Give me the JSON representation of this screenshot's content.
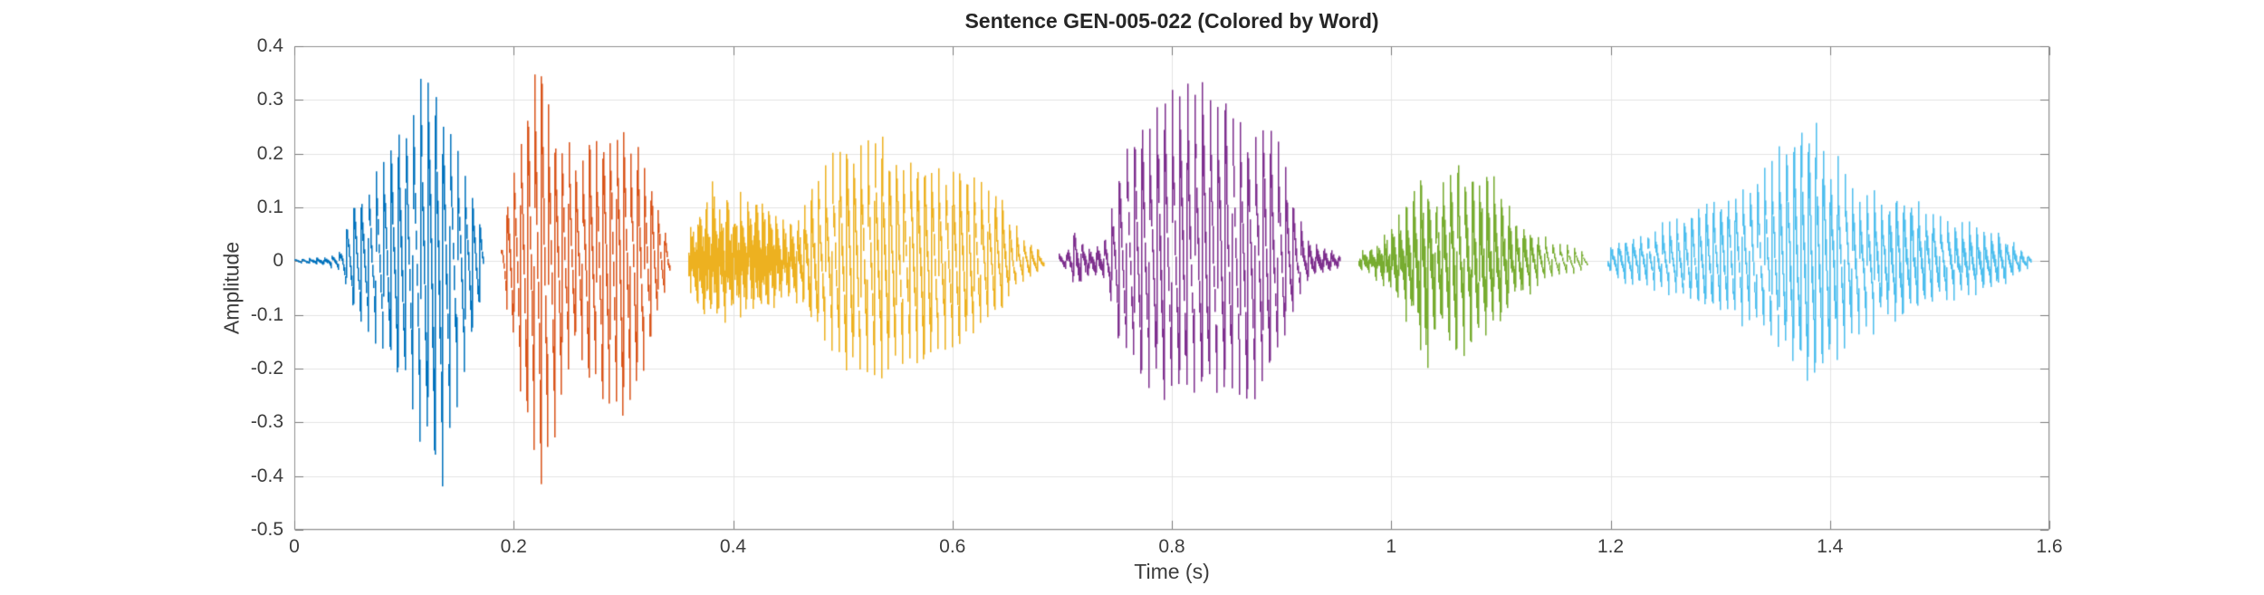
{
  "figure": {
    "title": "Sentence GEN-005-022 (Colored by Word)",
    "xlabel": "Time (s)",
    "ylabel": "Amplitude"
  },
  "axes": {
    "xlim": [
      0,
      1.6
    ],
    "ylim": [
      -0.5,
      0.4
    ],
    "xticks": [
      0,
      0.2,
      0.4,
      0.6,
      0.8,
      1,
      1.2,
      1.4,
      1.6
    ],
    "xtick_labels": [
      "0",
      "0.2",
      "0.4",
      "0.6",
      "0.8",
      "1",
      "1.2",
      "1.4",
      "1.6"
    ],
    "yticks": [
      0.4,
      0.3,
      0.2,
      0.1,
      0,
      -0.1,
      -0.2,
      -0.3,
      -0.4,
      -0.5
    ],
    "ytick_labels": [
      "0.4",
      "0.3",
      "0.2",
      "0.1",
      "0",
      "-0.1",
      "-0.2",
      "-0.3",
      "-0.4",
      "-0.5"
    ],
    "grid": true,
    "box": true,
    "colors": {
      "background": "#ffffff",
      "grid": "#e3e3e3",
      "box": "#8f8f8f",
      "tick": "#7a7a7a",
      "tick_text": "#3d3d3d",
      "title_text": "#262626"
    }
  },
  "chart_data": {
    "type": "line",
    "subtype": "audio-waveform-colored-by-word",
    "title": "Sentence GEN-005-022 (Colored by Word)",
    "xlabel": "Time (s)",
    "ylabel": "Amplitude",
    "xlim": [
      0,
      1.6
    ],
    "ylim": [
      -0.5,
      0.4
    ],
    "grid": true,
    "legend": "none",
    "segments": [
      {
        "word_index": 1,
        "color": "#0072BD",
        "t_start": 0.0,
        "t_end": 0.172,
        "f0_hz": 148,
        "peak_amp": 0.35,
        "min_amp": -0.42,
        "envelope": [
          [
            0.0,
            0.005,
            0.005,
            0.3
          ],
          [
            0.028,
            0.008,
            0.008,
            0.5
          ],
          [
            0.042,
            0.02,
            0.02,
            0.2
          ],
          [
            0.05,
            0.1,
            0.08,
            0.05
          ],
          [
            0.06,
            0.12,
            0.11,
            0.05
          ],
          [
            0.07,
            0.15,
            0.14,
            0.05
          ],
          [
            0.08,
            0.19,
            0.16,
            0.05
          ],
          [
            0.09,
            0.22,
            0.19,
            0.05
          ],
          [
            0.1,
            0.27,
            0.24,
            0.05
          ],
          [
            0.11,
            0.33,
            0.29,
            0.05
          ],
          [
            0.118,
            0.35,
            0.34,
            0.05
          ],
          [
            0.126,
            0.31,
            0.4,
            0.05
          ],
          [
            0.133,
            0.28,
            0.42,
            0.05
          ],
          [
            0.141,
            0.25,
            0.33,
            0.05
          ],
          [
            0.15,
            0.2,
            0.26,
            0.05
          ],
          [
            0.158,
            0.14,
            0.18,
            0.05
          ],
          [
            0.165,
            0.11,
            0.12,
            0.05
          ],
          [
            0.172,
            0.05,
            0.05,
            0.1
          ]
        ]
      },
      {
        "word_index": 2,
        "color": "#D95319",
        "t_start": 0.188,
        "t_end": 0.342,
        "f0_hz": 160,
        "peak_amp": 0.385,
        "min_amp": -0.42,
        "envelope": [
          [
            0.188,
            0.03,
            0.03,
            0.1
          ],
          [
            0.196,
            0.14,
            0.12,
            0.05
          ],
          [
            0.204,
            0.2,
            0.22,
            0.05
          ],
          [
            0.212,
            0.27,
            0.3,
            0.05
          ],
          [
            0.22,
            0.385,
            0.38,
            0.05
          ],
          [
            0.227,
            0.36,
            0.42,
            0.05
          ],
          [
            0.234,
            0.3,
            0.36,
            0.05
          ],
          [
            0.241,
            0.2,
            0.28,
            0.05
          ],
          [
            0.249,
            0.24,
            0.2,
            0.05
          ],
          [
            0.257,
            0.17,
            0.15,
            0.05
          ],
          [
            0.264,
            0.21,
            0.2,
            0.05
          ],
          [
            0.272,
            0.23,
            0.24,
            0.05
          ],
          [
            0.281,
            0.245,
            0.27,
            0.05
          ],
          [
            0.29,
            0.26,
            0.3,
            0.05
          ],
          [
            0.299,
            0.25,
            0.29,
            0.05
          ],
          [
            0.308,
            0.23,
            0.26,
            0.05
          ],
          [
            0.317,
            0.2,
            0.22,
            0.05
          ],
          [
            0.326,
            0.15,
            0.15,
            0.05
          ],
          [
            0.335,
            0.09,
            0.08,
            0.1
          ],
          [
            0.342,
            0.03,
            0.03,
            0.1
          ]
        ]
      },
      {
        "word_index": 3,
        "color": "#EDB120",
        "t_start": 0.359,
        "t_end": 0.683,
        "f0_hz": 155,
        "peak_amp": 0.23,
        "min_amp": -0.22,
        "envelope": [
          [
            0.359,
            0.06,
            0.05,
            0.6
          ],
          [
            0.368,
            0.11,
            0.1,
            0.6
          ],
          [
            0.378,
            0.135,
            0.12,
            0.6
          ],
          [
            0.39,
            0.14,
            0.125,
            0.6
          ],
          [
            0.402,
            0.125,
            0.115,
            0.6
          ],
          [
            0.414,
            0.13,
            0.12,
            0.6
          ],
          [
            0.426,
            0.125,
            0.115,
            0.6
          ],
          [
            0.438,
            0.11,
            0.1,
            0.55
          ],
          [
            0.45,
            0.09,
            0.085,
            0.5
          ],
          [
            0.46,
            0.1,
            0.09,
            0.35
          ],
          [
            0.47,
            0.14,
            0.12,
            0.2
          ],
          [
            0.48,
            0.17,
            0.15,
            0.1
          ],
          [
            0.492,
            0.2,
            0.18,
            0.08
          ],
          [
            0.504,
            0.215,
            0.21,
            0.08
          ],
          [
            0.516,
            0.225,
            0.215,
            0.08
          ],
          [
            0.528,
            0.23,
            0.22,
            0.08
          ],
          [
            0.54,
            0.225,
            0.21,
            0.08
          ],
          [
            0.552,
            0.21,
            0.2,
            0.08
          ],
          [
            0.564,
            0.195,
            0.19,
            0.08
          ],
          [
            0.576,
            0.185,
            0.185,
            0.08
          ],
          [
            0.588,
            0.18,
            0.18,
            0.08
          ],
          [
            0.6,
            0.175,
            0.17,
            0.08
          ],
          [
            0.612,
            0.17,
            0.16,
            0.08
          ],
          [
            0.624,
            0.155,
            0.14,
            0.08
          ],
          [
            0.636,
            0.13,
            0.11,
            0.08
          ],
          [
            0.648,
            0.1,
            0.08,
            0.1
          ],
          [
            0.66,
            0.06,
            0.05,
            0.15
          ],
          [
            0.672,
            0.035,
            0.03,
            0.2
          ],
          [
            0.683,
            0.012,
            0.012,
            0.3
          ]
        ]
      },
      {
        "word_index": 4,
        "color": "#7E2F8E",
        "t_start": 0.697,
        "t_end": 0.953,
        "f0_hz": 145,
        "peak_amp": 0.36,
        "min_amp": -0.27,
        "envelope": [
          [
            0.697,
            0.015,
            0.015,
            0.3
          ],
          [
            0.705,
            0.025,
            0.02,
            0.4
          ],
          [
            0.711,
            0.065,
            0.05,
            0.3
          ],
          [
            0.717,
            0.05,
            0.065,
            0.3
          ],
          [
            0.723,
            0.025,
            0.03,
            0.4
          ],
          [
            0.731,
            0.03,
            0.035,
            0.4
          ],
          [
            0.739,
            0.05,
            0.05,
            0.3
          ],
          [
            0.747,
            0.13,
            0.11,
            0.08
          ],
          [
            0.755,
            0.19,
            0.17,
            0.06
          ],
          [
            0.763,
            0.24,
            0.21,
            0.06
          ],
          [
            0.772,
            0.27,
            0.235,
            0.06
          ],
          [
            0.782,
            0.295,
            0.25,
            0.06
          ],
          [
            0.792,
            0.31,
            0.26,
            0.06
          ],
          [
            0.802,
            0.325,
            0.265,
            0.06
          ],
          [
            0.812,
            0.34,
            0.27,
            0.06
          ],
          [
            0.822,
            0.36,
            0.265,
            0.06
          ],
          [
            0.832,
            0.35,
            0.26,
            0.06
          ],
          [
            0.842,
            0.33,
            0.255,
            0.06
          ],
          [
            0.852,
            0.3,
            0.25,
            0.06
          ],
          [
            0.86,
            0.26,
            0.245,
            0.06
          ],
          [
            0.868,
            0.22,
            0.26,
            0.06
          ],
          [
            0.875,
            0.245,
            0.27,
            0.06
          ],
          [
            0.882,
            0.26,
            0.245,
            0.06
          ],
          [
            0.89,
            0.255,
            0.22,
            0.06
          ],
          [
            0.898,
            0.22,
            0.18,
            0.06
          ],
          [
            0.906,
            0.16,
            0.13,
            0.08
          ],
          [
            0.914,
            0.1,
            0.08,
            0.12
          ],
          [
            0.922,
            0.055,
            0.05,
            0.25
          ],
          [
            0.93,
            0.035,
            0.035,
            0.4
          ],
          [
            0.94,
            0.03,
            0.03,
            0.4
          ],
          [
            0.953,
            0.015,
            0.015,
            0.4
          ]
        ]
      },
      {
        "word_index": 5,
        "color": "#77AC30",
        "t_start": 0.97,
        "t_end": 1.178,
        "f0_hz": 150,
        "peak_amp": 0.245,
        "min_amp": -0.22,
        "envelope": [
          [
            0.97,
            0.015,
            0.015,
            0.5
          ],
          [
            0.98,
            0.025,
            0.025,
            0.55
          ],
          [
            0.99,
            0.04,
            0.045,
            0.55
          ],
          [
            1.0,
            0.07,
            0.075,
            0.5
          ],
          [
            1.008,
            0.1,
            0.1,
            0.45
          ],
          [
            1.016,
            0.12,
            0.13,
            0.4
          ],
          [
            1.024,
            0.18,
            0.17,
            0.3
          ],
          [
            1.03,
            0.175,
            0.21,
            0.3
          ],
          [
            1.036,
            0.14,
            0.19,
            0.35
          ],
          [
            1.042,
            0.12,
            0.14,
            0.4
          ],
          [
            1.048,
            0.16,
            0.17,
            0.3
          ],
          [
            1.054,
            0.22,
            0.2,
            0.25
          ],
          [
            1.06,
            0.245,
            0.22,
            0.25
          ],
          [
            1.066,
            0.22,
            0.215,
            0.25
          ],
          [
            1.072,
            0.2,
            0.19,
            0.3
          ],
          [
            1.078,
            0.185,
            0.17,
            0.3
          ],
          [
            1.084,
            0.2,
            0.155,
            0.3
          ],
          [
            1.09,
            0.17,
            0.14,
            0.3
          ],
          [
            1.098,
            0.145,
            0.12,
            0.3
          ],
          [
            1.106,
            0.12,
            0.1,
            0.3
          ],
          [
            1.114,
            0.1,
            0.085,
            0.3
          ],
          [
            1.122,
            0.08,
            0.07,
            0.25
          ],
          [
            1.13,
            0.06,
            0.055,
            0.2
          ],
          [
            1.14,
            0.045,
            0.04,
            0.15
          ],
          [
            1.15,
            0.035,
            0.03,
            0.1
          ],
          [
            1.16,
            0.03,
            0.025,
            0.08
          ],
          [
            1.17,
            0.025,
            0.02,
            0.08
          ],
          [
            1.178,
            0.012,
            0.012,
            0.1
          ]
        ]
      },
      {
        "word_index": 6,
        "color": "#4DBEEE",
        "t_start": 1.197,
        "t_end": 1.583,
        "f0_hz": 150,
        "peak_amp": 0.26,
        "min_amp": -0.24,
        "envelope": [
          [
            1.197,
            0.025,
            0.02,
            0.25
          ],
          [
            1.21,
            0.045,
            0.04,
            0.2
          ],
          [
            1.225,
            0.055,
            0.05,
            0.2
          ],
          [
            1.24,
            0.065,
            0.055,
            0.18
          ],
          [
            1.255,
            0.075,
            0.065,
            0.15
          ],
          [
            1.27,
            0.09,
            0.075,
            0.12
          ],
          [
            1.285,
            0.1,
            0.085,
            0.12
          ],
          [
            1.3,
            0.12,
            0.1,
            0.1
          ],
          [
            1.315,
            0.145,
            0.115,
            0.1
          ],
          [
            1.33,
            0.17,
            0.135,
            0.1
          ],
          [
            1.345,
            0.195,
            0.16,
            0.1
          ],
          [
            1.36,
            0.225,
            0.185,
            0.1
          ],
          [
            1.372,
            0.25,
            0.21,
            0.1
          ],
          [
            1.382,
            0.26,
            0.23,
            0.1
          ],
          [
            1.392,
            0.235,
            0.215,
            0.1
          ],
          [
            1.402,
            0.2,
            0.2,
            0.12
          ],
          [
            1.412,
            0.17,
            0.18,
            0.12
          ],
          [
            1.424,
            0.15,
            0.155,
            0.15
          ],
          [
            1.436,
            0.135,
            0.13,
            0.15
          ],
          [
            1.448,
            0.12,
            0.115,
            0.18
          ],
          [
            1.46,
            0.13,
            0.115,
            0.18
          ],
          [
            1.472,
            0.115,
            0.1,
            0.2
          ],
          [
            1.484,
            0.1,
            0.095,
            0.2
          ],
          [
            1.496,
            0.095,
            0.085,
            0.22
          ],
          [
            1.51,
            0.085,
            0.075,
            0.25
          ],
          [
            1.524,
            0.075,
            0.07,
            0.25
          ],
          [
            1.538,
            0.065,
            0.06,
            0.25
          ],
          [
            1.552,
            0.055,
            0.05,
            0.25
          ],
          [
            1.566,
            0.04,
            0.035,
            0.25
          ],
          [
            1.576,
            0.025,
            0.02,
            0.3
          ],
          [
            1.583,
            0.01,
            0.01,
            0.3
          ]
        ]
      }
    ]
  }
}
